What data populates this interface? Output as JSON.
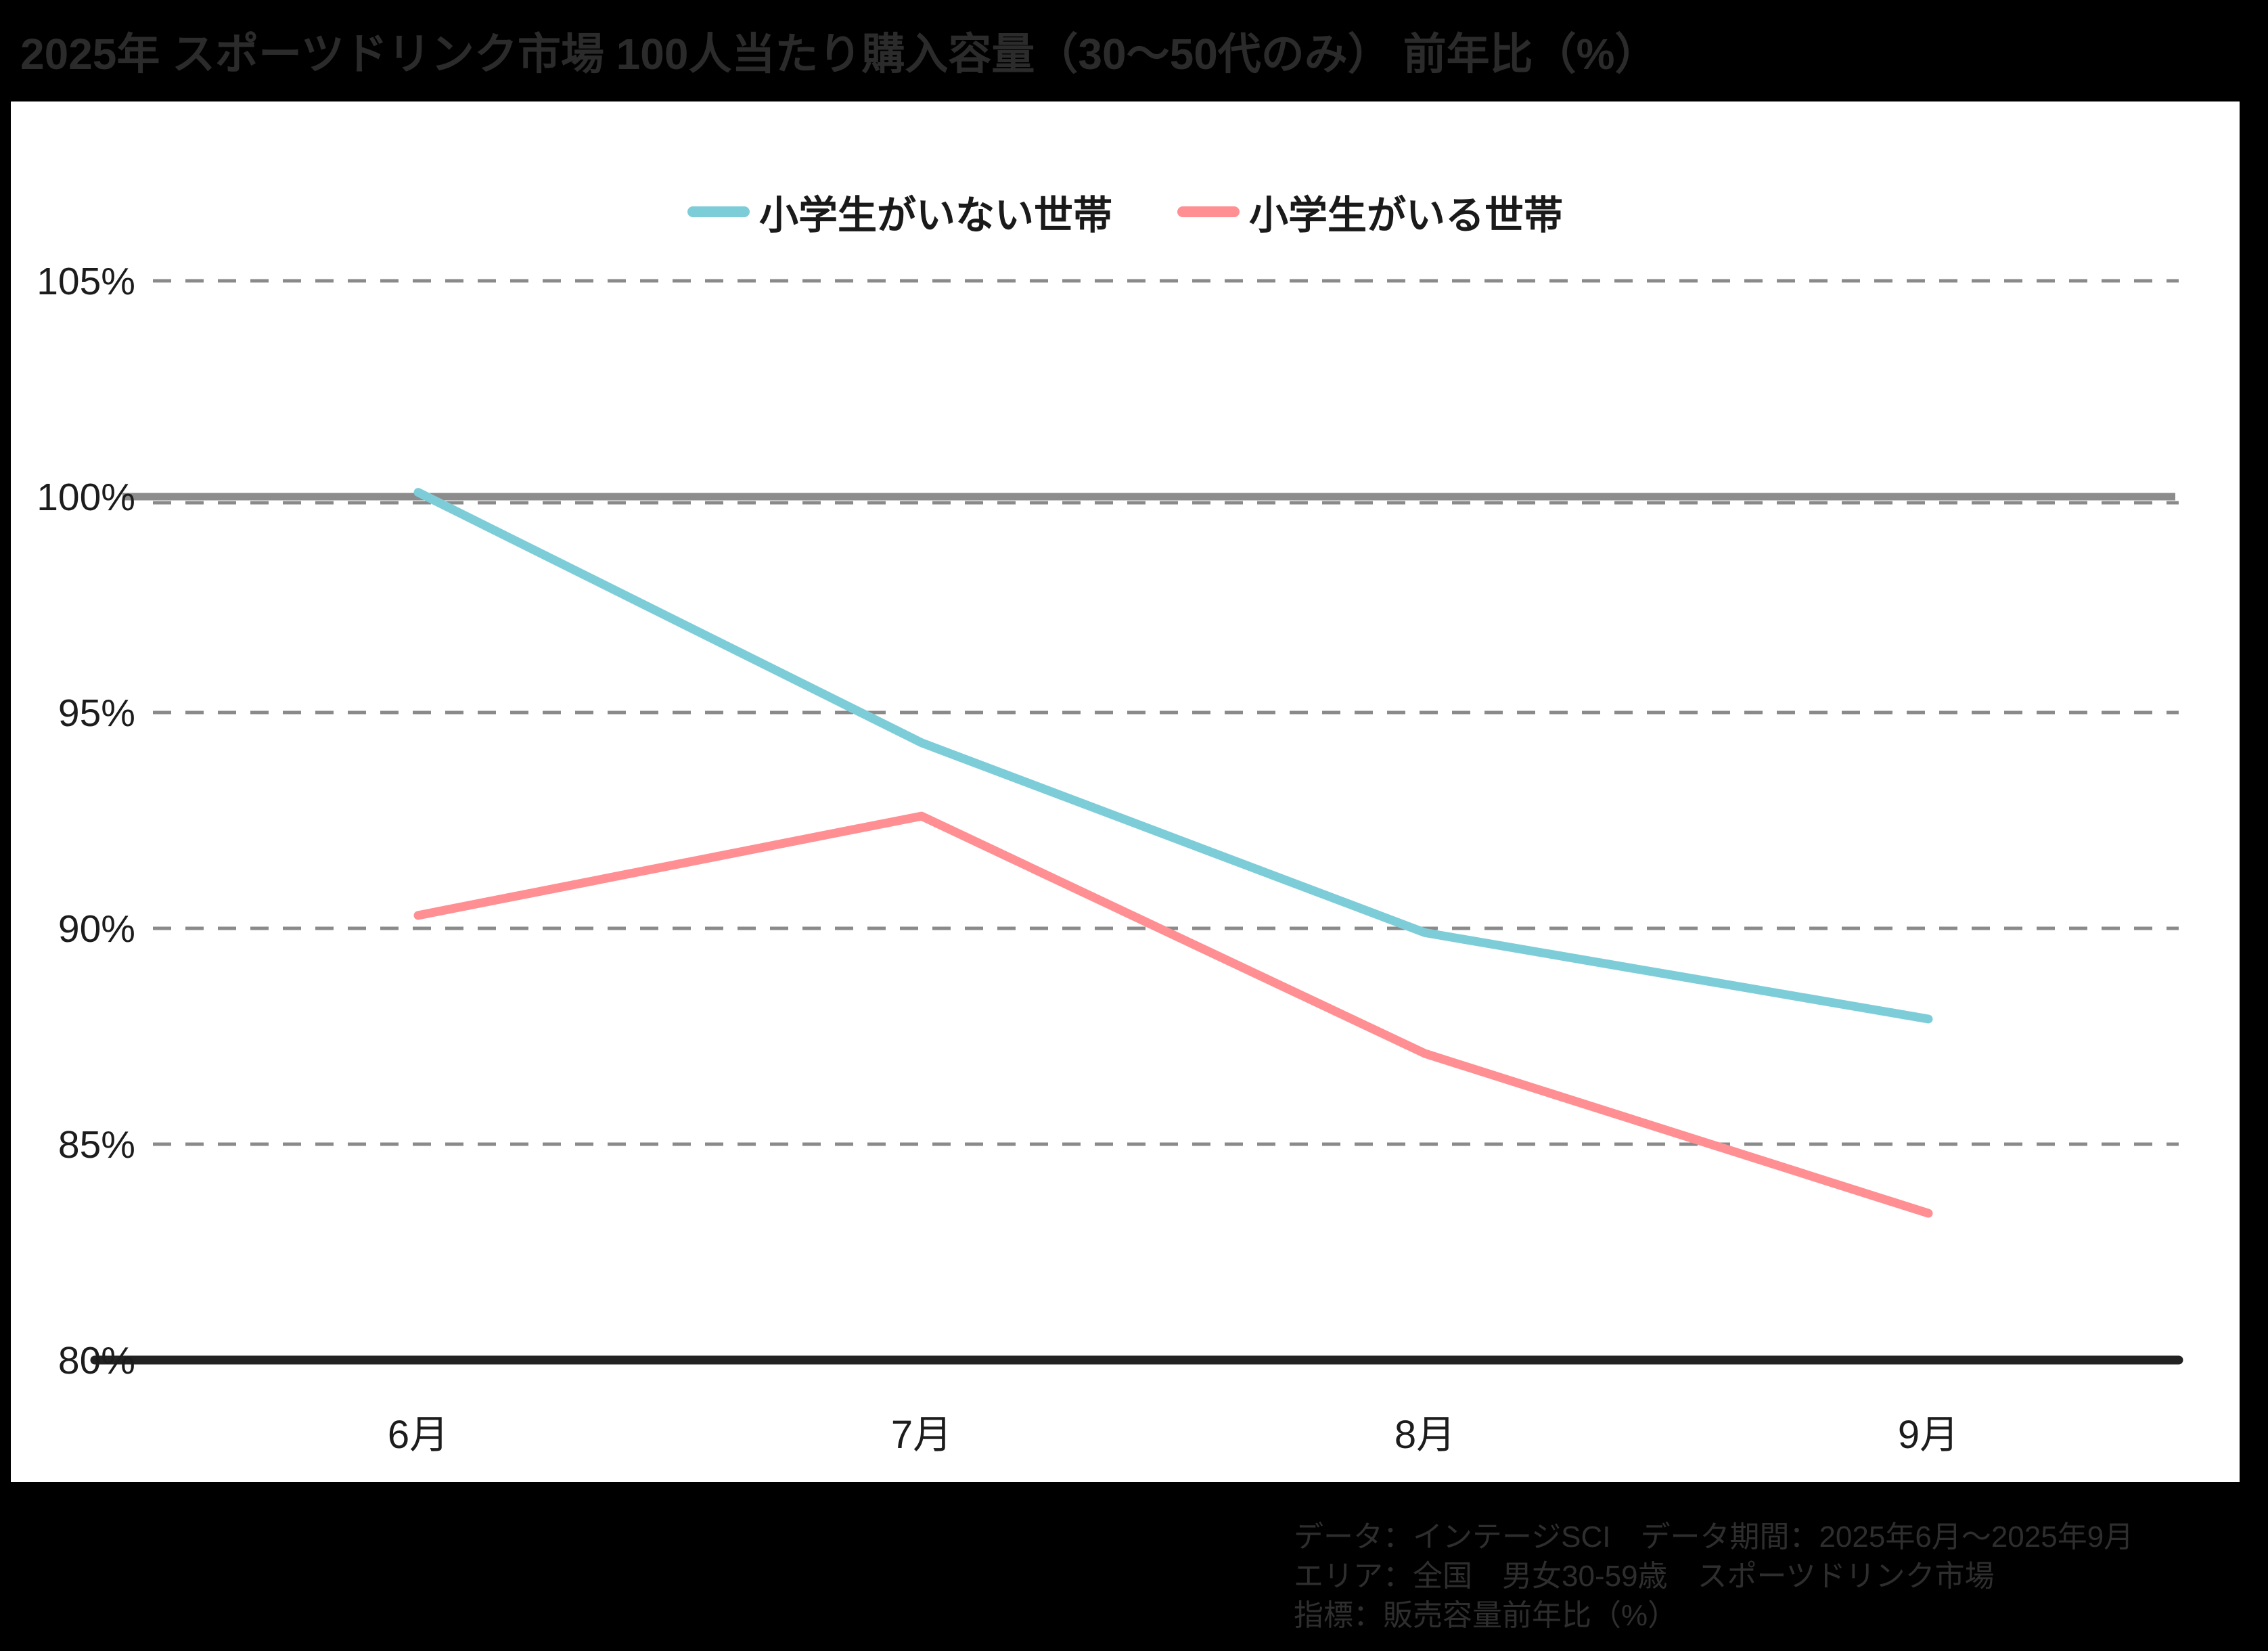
{
  "title": "2025年 スポーツドリンク市場 100人当たり購入容量（30～50代のみ） 前年比（%）",
  "legend": [
    {
      "label": "小学生がいない世帯",
      "color": "#7dcdd9"
    },
    {
      "label": "小学生がいる世帯",
      "color": "#ff8f92"
    }
  ],
  "footer": {
    "line1": "データ：インテージSCI　データ期間：2025年6月～2025年9月",
    "line2": "エリア：全国　男女30-59歳　スポーツドリンク市場",
    "line3": "指標：販売容量前年比（%）"
  },
  "colors": {
    "background": "#000000",
    "panel": "#ffffff",
    "title_text": "#2b2b2b",
    "footer_text": "#2e2e2e",
    "tick_text": "#1c1c1c",
    "gridline": "#8a8a8a",
    "baseline_100": "#8c8c8c",
    "x_axis_line": "#222222",
    "series_no_kids": "#7dcdd9",
    "series_with_kids": "#ff8f92"
  },
  "chart_data": {
    "type": "line",
    "title": "2025年 スポーツドリンク市場 100人当たり購入容量（30～50代のみ） 前年比（%）",
    "categories": [
      "6月",
      "7月",
      "8月",
      "9月"
    ],
    "series": [
      {
        "name": "小学生がいない世帯",
        "color": "#7dcdd9",
        "values": [
          100.1,
          94.3,
          89.9,
          87.9
        ]
      },
      {
        "name": "小学生がいる世帯",
        "color": "#ff8f92",
        "values": [
          90.3,
          92.6,
          87.1,
          83.4
        ]
      }
    ],
    "xlabel": "",
    "ylabel": "前年比（%）",
    "ylim": [
      80,
      105
    ],
    "y_ticks": [
      "105%",
      "100%",
      "95%",
      "90%",
      "85%",
      "80%"
    ],
    "y_tick_values": [
      105,
      100,
      95,
      90,
      85,
      80
    ],
    "baseline_value": 100,
    "grid": "horizontal-dashed",
    "legend_position": "top-center"
  }
}
